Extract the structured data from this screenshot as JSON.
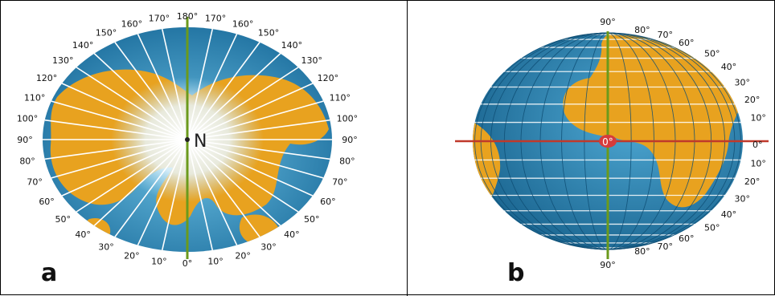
{
  "panel_a": {
    "label": "a",
    "pole_label": "N",
    "meridian_labels_left": [
      "180°",
      "170°",
      "160°",
      "150°",
      "140°",
      "130°",
      "120°",
      "110°",
      "100°",
      "90°",
      "80°",
      "70°",
      "60°",
      "50°",
      "40°",
      "30°",
      "20°",
      "10°",
      "0°"
    ],
    "meridian_labels_right": [
      "170°",
      "160°",
      "150°",
      "140°",
      "130°",
      "120°",
      "110°",
      "100°",
      "90°",
      "80°",
      "70°",
      "60°",
      "50°",
      "40°",
      "30°",
      "20°",
      "10°"
    ]
  },
  "panel_b": {
    "label": "b",
    "center_label": "0°",
    "top_label": "90°",
    "bottom_label": "90°",
    "right_labels": [
      "80°",
      "70°",
      "60°",
      "50°",
      "40°",
      "30°",
      "20°",
      "10°",
      "0°",
      "10°",
      "20°",
      "30°",
      "40°",
      "50°",
      "60°",
      "70°",
      "80°"
    ]
  },
  "colors": {
    "ocean": "#2a86b5",
    "land": "#e8a21f",
    "meridian": "#6b9a1c",
    "equator": "#c0392b"
  }
}
